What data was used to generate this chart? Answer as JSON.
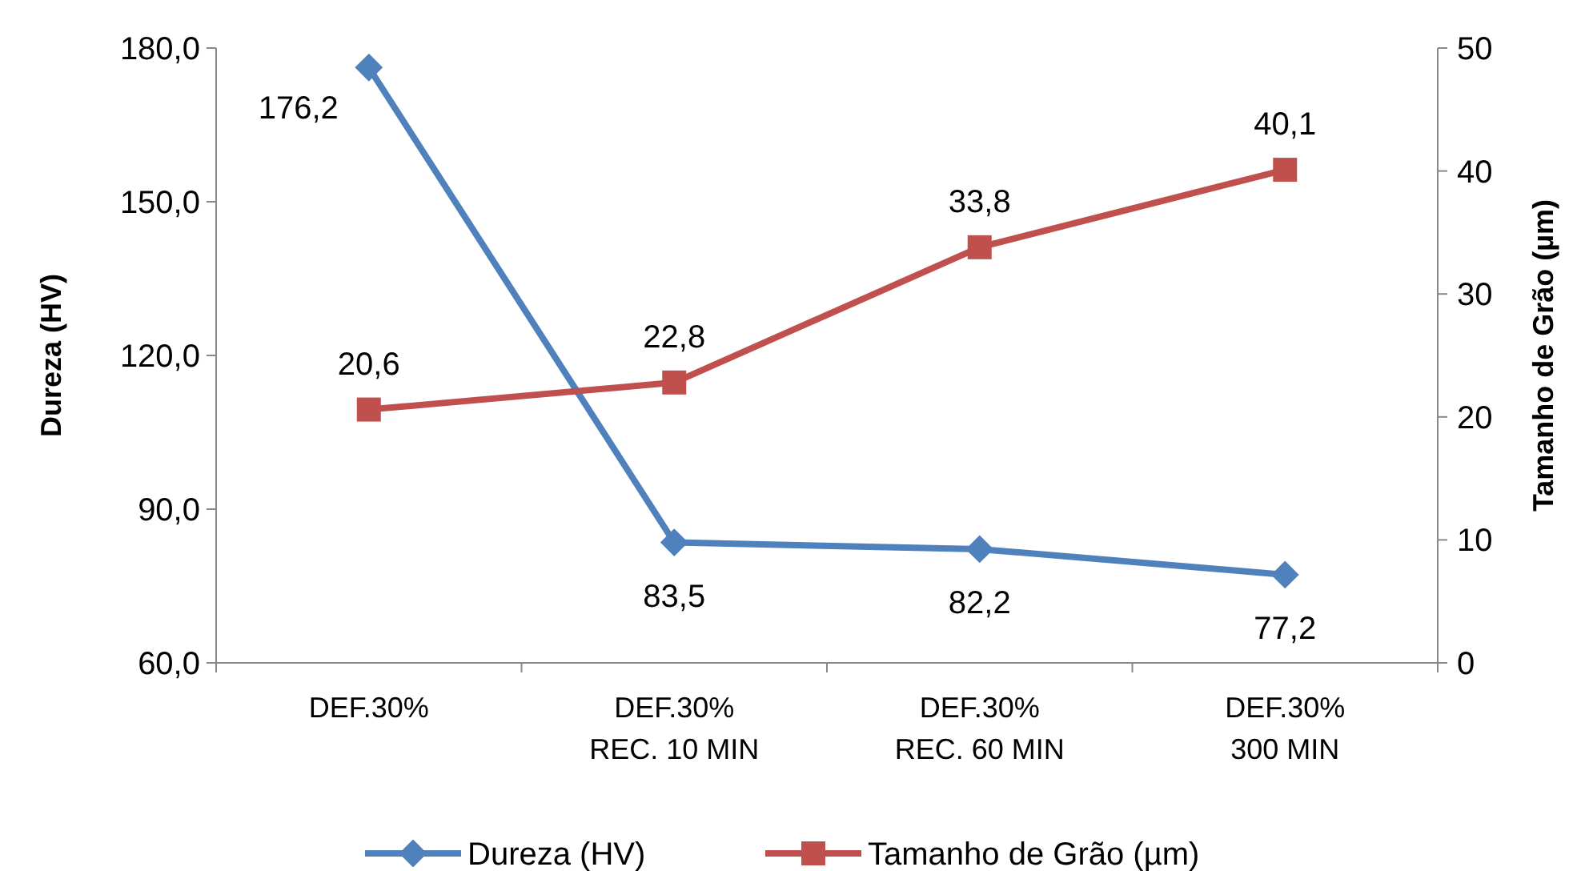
{
  "chart_data": {
    "type": "line",
    "categories": [
      "DEF.30%",
      "DEF.30%\nREC. 10 MIN",
      "DEF.30%\nREC. 60 MIN",
      "DEF.30%\n300 MIN"
    ],
    "ylabel": "Dureza (HV)",
    "y2label": "Tamanho de Grão (µm)",
    "ylim": [
      60,
      180
    ],
    "yticks": [
      {
        "value": 60,
        "label": "60,0"
      },
      {
        "value": 90,
        "label": "90,0"
      },
      {
        "value": 120,
        "label": "120,0"
      },
      {
        "value": 150,
        "label": "150,0"
      },
      {
        "value": 180,
        "label": "180,0"
      }
    ],
    "y2lim": [
      0,
      50
    ],
    "y2ticks": [
      0,
      10,
      20,
      30,
      40,
      50
    ],
    "grid": false,
    "legend": "bottom",
    "line_style": "solid",
    "series": [
      {
        "name": "Dureza (HV)",
        "color": "#4f81bd",
        "marker": "diamond",
        "values": [
          176.2,
          83.5,
          82.2,
          77.2
        ],
        "value_labels": [
          "176,2",
          "83,5",
          "82,2",
          "77,2"
        ]
      },
      {
        "name": "Tamanho de Grão (µm)",
        "color": "#c0504d",
        "marker": "square",
        "axis": "y2",
        "values": [
          20.6,
          22.8,
          33.8,
          40.1
        ],
        "value_labels": [
          "20,6",
          "22,8",
          "33,8",
          "40,1"
        ]
      }
    ]
  }
}
